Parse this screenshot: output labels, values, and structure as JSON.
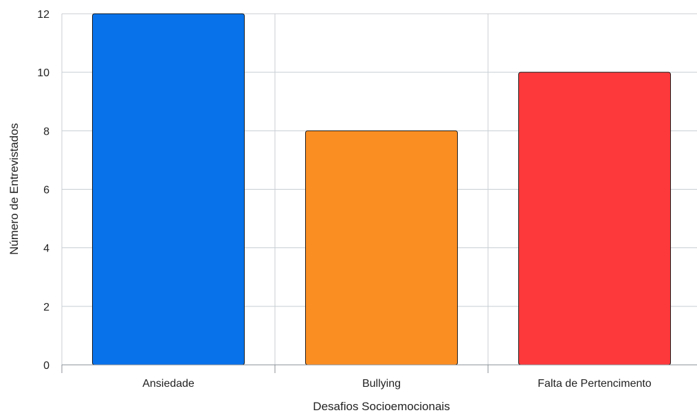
{
  "chart_data": {
    "type": "bar",
    "categories": [
      "Ansiedade",
      "Bullying",
      "Falta de Pertencimento"
    ],
    "values": [
      12,
      8,
      10
    ],
    "colors": [
      "#0872ea",
      "#fb8e22",
      "#fd393c"
    ],
    "title": "",
    "xlabel": "Desafios Socioemocionais",
    "ylabel": "Número de Entrevistados",
    "ylim": [
      0,
      12
    ],
    "yticks": [
      0,
      2,
      4,
      6,
      8,
      10,
      12
    ],
    "grid": true,
    "legend": "none"
  }
}
